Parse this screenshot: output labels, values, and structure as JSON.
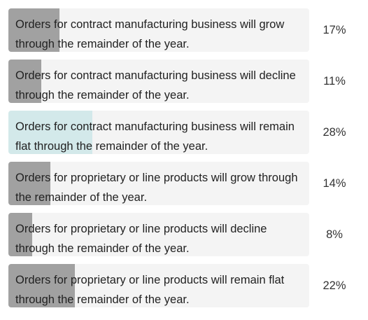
{
  "chart_data": {
    "type": "bar",
    "orientation": "horizontal",
    "categories": [
      "Orders for contract manufacturing business will grow through the remainder of the year.",
      "Orders for contract manufacturing business will decline through the remainder of the year.",
      "Orders for contract manufacturing business will remain flat through the remainder of the year.",
      "Orders for proprietary or line products will grow through the remainder of the year.",
      "Orders for proprietary or line products will decline through the remainder of the year.",
      "Orders for proprietary or line products will remain flat through the remainder of the year."
    ],
    "values": [
      17,
      11,
      28,
      14,
      8,
      22
    ],
    "value_labels": [
      "17%",
      "11%",
      "28%",
      "14%",
      "8%",
      "22%"
    ],
    "value_unit": "%",
    "xlim": [
      0,
      100
    ],
    "highlighted_index": 2,
    "title": "",
    "xlabel": "",
    "ylabel": "",
    "grid": false,
    "legend": "none"
  },
  "colors": {
    "bar_fill": "#a1a1a1",
    "highlight_fill": "#d3e9ea",
    "option_background": "#f4f4f4"
  }
}
